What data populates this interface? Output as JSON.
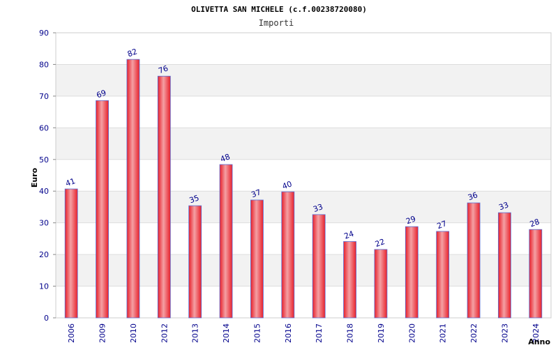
{
  "chart_data": {
    "type": "bar",
    "title": "OLIVETTA SAN MICHELE (c.f.00238720080)",
    "subtitle": "Importi",
    "xlabel": "Anno",
    "ylabel": "Euro",
    "categories": [
      "2006",
      "2009",
      "2010",
      "2012",
      "2013",
      "2014",
      "2015",
      "2016",
      "2017",
      "2018",
      "2019",
      "2020",
      "2021",
      "2022",
      "2023",
      "2024"
    ],
    "values": [
      40.7,
      68.6,
      81.6,
      76.3,
      35.4,
      48.4,
      37.2,
      39.8,
      32.6,
      24.1,
      21.6,
      28.8,
      27.3,
      36.3,
      33.2,
      27.9
    ],
    "data_labels": [
      "41",
      "69",
      "82",
      "76",
      "35",
      "48",
      "37",
      "40",
      "33",
      "24",
      "22",
      "29",
      "27",
      "36",
      "33",
      "28"
    ],
    "ylim": [
      0,
      90
    ],
    "yticks": [
      "0",
      "10",
      "20",
      "30",
      "40",
      "50",
      "60",
      "70",
      "80",
      "90"
    ],
    "grid": true,
    "colors": {
      "bar": "#e8202a",
      "bar_highlight": "#f4a0a4",
      "bar_border": "#5a6fd6",
      "band": "#f2f2f2",
      "grid": "#dddddd",
      "tick_text": "#00008b"
    }
  }
}
